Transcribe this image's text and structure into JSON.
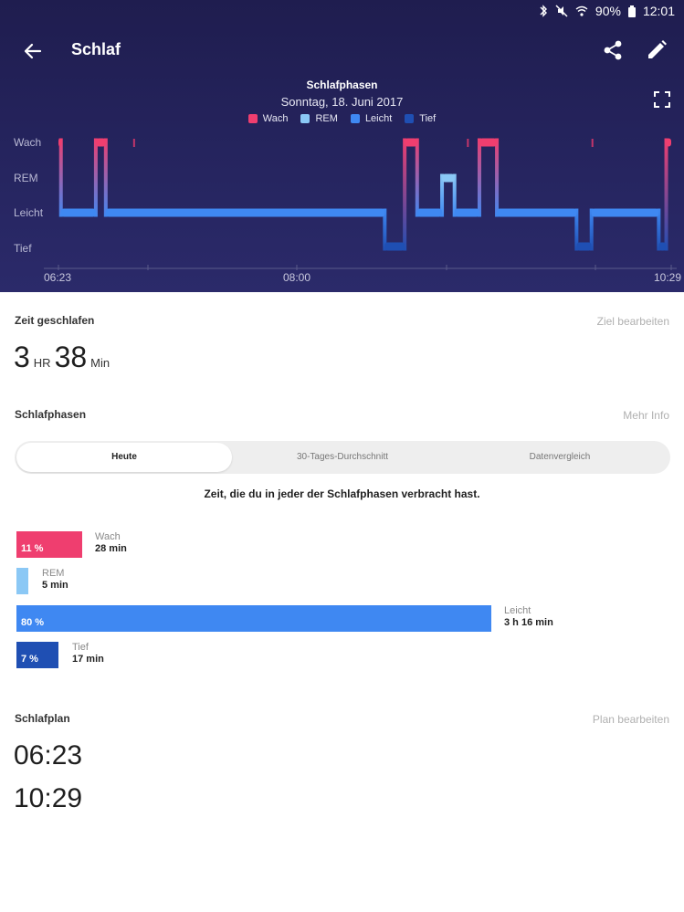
{
  "status": {
    "battery": "90%",
    "time": "12:01"
  },
  "header": {
    "title": "Schlaf"
  },
  "chart": {
    "title": "Schlafphasen",
    "date": "Sonntag, 18. Juni 2017",
    "legend": [
      {
        "label": "Wach",
        "color": "#ef3e6f"
      },
      {
        "label": "REM",
        "color": "#8bc8f5"
      },
      {
        "label": "Leicht",
        "color": "#3f88f2"
      },
      {
        "label": "Tief",
        "color": "#1f4fb3"
      }
    ],
    "y_labels": [
      "Wach",
      "REM",
      "Leicht",
      "Tief"
    ],
    "x_labels": [
      "06:23",
      "08:00",
      "10:29"
    ]
  },
  "chart_data": {
    "type": "hypnogram",
    "title": "Schlafphasen",
    "subtitle": "Sonntag, 18. Juni 2017",
    "x_range": [
      "06:23",
      "10:29"
    ],
    "levels": [
      "Wach",
      "REM",
      "Leicht",
      "Tief"
    ],
    "segments": [
      {
        "stage": "Wach",
        "start": "06:23",
        "end": "06:24"
      },
      {
        "stage": "Leicht",
        "start": "06:24",
        "end": "06:38"
      },
      {
        "stage": "Wach",
        "start": "06:38",
        "end": "06:42"
      },
      {
        "stage": "Leicht",
        "start": "06:42",
        "end": "08:34"
      },
      {
        "stage": "Tief",
        "start": "08:34",
        "end": "08:42"
      },
      {
        "stage": "Wach",
        "start": "08:42",
        "end": "08:47"
      },
      {
        "stage": "Leicht",
        "start": "08:47",
        "end": "08:57"
      },
      {
        "stage": "REM",
        "start": "08:57",
        "end": "09:02"
      },
      {
        "stage": "Leicht",
        "start": "09:02",
        "end": "09:12"
      },
      {
        "stage": "Wach",
        "start": "09:12",
        "end": "09:19"
      },
      {
        "stage": "Leicht",
        "start": "09:19",
        "end": "09:51"
      },
      {
        "stage": "Tief",
        "start": "09:51",
        "end": "09:57"
      },
      {
        "stage": "Leicht",
        "start": "09:57",
        "end": "10:24"
      },
      {
        "stage": "Tief",
        "start": "10:24",
        "end": "10:27"
      },
      {
        "stage": "Wach",
        "start": "10:27",
        "end": "10:29"
      }
    ],
    "wake_ticks": [
      "06:53",
      "09:07",
      "09:57"
    ]
  },
  "time_asleep": {
    "heading": "Zeit geschlafen",
    "link": "Ziel bearbeiten",
    "hours": "3",
    "hours_unit": "HR",
    "minutes": "38",
    "minutes_unit": "Min"
  },
  "phases": {
    "heading": "Schlafphasen",
    "link": "Mehr Info",
    "tabs": [
      "Heute",
      "30-Tages-Durchschnitt",
      "Datenvergleich"
    ],
    "description": "Zeit, die du in jeder der Schlafphasen verbracht hast.",
    "bars": [
      {
        "name": "Wach",
        "pct": "11 %",
        "fraction": 0.11,
        "duration": "28 min",
        "color": "#ef3e6f"
      },
      {
        "name": "REM",
        "pct": "",
        "fraction": 0.02,
        "duration": "5 min",
        "color": "#8bc8f5"
      },
      {
        "name": "Leicht",
        "pct": "80 %",
        "fraction": 0.8,
        "duration": "3 h 16 min",
        "color": "#3f88f2"
      },
      {
        "name": "Tief",
        "pct": "7 %",
        "fraction": 0.07,
        "duration": "17 min",
        "color": "#1f4fb3"
      }
    ]
  },
  "plan": {
    "heading": "Schlafplan",
    "link": "Plan bearbeiten",
    "start": "06:23",
    "end": "10:29"
  }
}
